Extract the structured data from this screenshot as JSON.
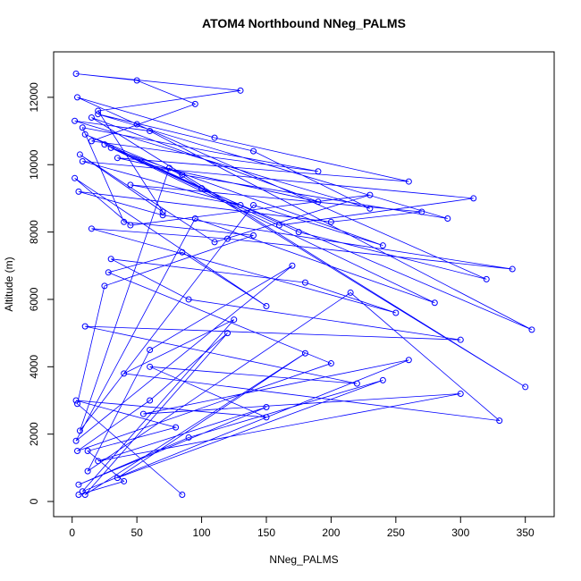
{
  "chart_data": {
    "type": "scatter",
    "title": "ATOM4 Northbound NNeg_PALMS",
    "x_label": "NNeg_PALMS",
    "y_label": "Altitude (m)",
    "xlim": [
      -14.3,
      372.3
    ],
    "ylim": [
      -450,
      13350
    ],
    "xticks": [
      0,
      50,
      100,
      150,
      200,
      250,
      300,
      350
    ],
    "yticks": [
      0,
      2000,
      4000,
      6000,
      8000,
      10000,
      12000
    ],
    "series": [
      {
        "color": "#0000ff",
        "x": [
          5,
          40,
          12,
          80,
          3,
          150,
          60,
          220,
          10,
          300,
          90,
          30,
          180,
          250,
          15,
          120,
          340,
          70,
          5,
          200,
          270,
          45,
          130,
          8,
          310,
          160,
          25,
          100,
          355,
          60,
          2,
          230,
          140,
          20,
          290,
          85,
          10,
          175,
          320,
          50,
          4,
          110,
          260,
          35,
          190,
          15,
          350,
          75,
          6,
          140,
          240,
          30,
          280,
          95,
          3,
          170,
          60,
          12,
          215,
          330,
          40,
          125,
          8,
          260,
          55,
          300,
          20,
          150,
          5,
          90,
          240,
          35,
          180,
          10,
          120,
          60,
          4,
          200,
          28,
          85,
          150,
          2,
          45,
          230,
          110,
          6,
          70,
          20,
          130,
          3,
          50,
          95,
          15,
          190,
          8,
          40,
          140,
          25,
          4,
          85
        ],
        "values": [
          200,
          600,
          1500,
          2200,
          3000,
          2500,
          4000,
          3500,
          5200,
          4800,
          6000,
          7200,
          6500,
          5600,
          8100,
          7800,
          6900,
          8500,
          9200,
          8300,
          8600,
          9400,
          8800,
          10100,
          9000,
          8200,
          10600,
          9300,
          5100,
          11000,
          11300,
          8700,
          10400,
          11500,
          8400,
          9700,
          10900,
          8000,
          6600,
          11200,
          12000,
          10800,
          9500,
          10200,
          8900,
          11400,
          3400,
          9900,
          2100,
          8800,
          7600,
          10500,
          5900,
          8400,
          1800,
          7000,
          4500,
          900,
          6200,
          2400,
          3800,
          5400,
          300,
          4200,
          2600,
          3200,
          1200,
          2800,
          500,
          1900,
          3600,
          700,
          4400,
          200,
          5000,
          3000,
          1500,
          4100,
          6800,
          7400,
          5800,
          9600,
          8200,
          9100,
          7700,
          10300,
          8600,
          11600,
          12200,
          12700,
          12500,
          11800,
          10700,
          9800,
          11100,
          8300,
          7900,
          6400,
          2900,
          200
        ]
      }
    ]
  }
}
